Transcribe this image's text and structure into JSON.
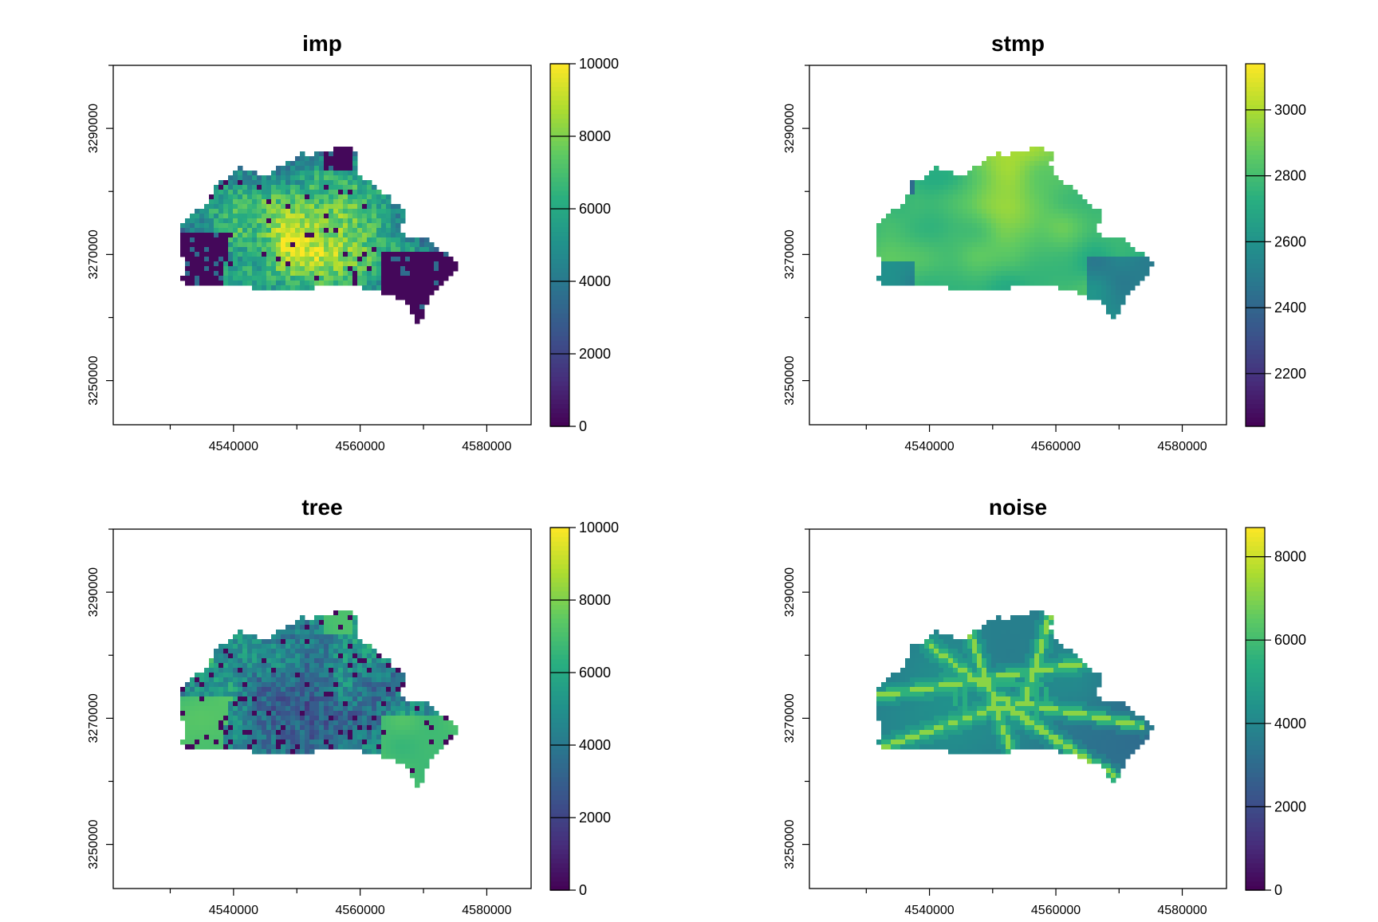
{
  "figure": {
    "title": "",
    "colormap": [
      "#440154",
      "#472d7b",
      "#3b528b",
      "#2c728e",
      "#21918c",
      "#28ae80",
      "#5ec962",
      "#addc30",
      "#fde725"
    ]
  },
  "chart_data": [
    {
      "type": "heatmap",
      "title": "imp",
      "xlabel": "",
      "ylabel": "",
      "xlim": [
        4521000,
        4587000
      ],
      "ylim": [
        3243000,
        3300000
      ],
      "xticks": [
        4540000,
        4560000,
        4580000
      ],
      "yticks": [
        3250000,
        3270000,
        3290000
      ],
      "xtick_labels": [
        "4540000",
        "4560000",
        "4580000"
      ],
      "ytick_labels": [
        "3250000",
        "3270000",
        "3290000"
      ],
      "colorbar": {
        "min": 0,
        "max": 10000,
        "ticks": [
          0,
          2000,
          4000,
          6000,
          8000,
          10000
        ],
        "tick_labels": [
          "0",
          "2000",
          "4000",
          "6000",
          "8000",
          "10000"
        ]
      },
      "pattern": "imp"
    },
    {
      "type": "heatmap",
      "title": "stmp",
      "xlabel": "",
      "ylabel": "",
      "xlim": [
        4521000,
        4587000
      ],
      "ylim": [
        3243000,
        3300000
      ],
      "xticks": [
        4540000,
        4560000,
        4580000
      ],
      "yticks": [
        3250000,
        3270000,
        3290000
      ],
      "xtick_labels": [
        "4540000",
        "4560000",
        "4580000"
      ],
      "ytick_labels": [
        "3250000",
        "3270000",
        "3290000"
      ],
      "colorbar": {
        "min": 2040,
        "max": 3140,
        "ticks": [
          2200,
          2400,
          2600,
          2800,
          3000
        ],
        "tick_labels": [
          "2200",
          "2400",
          "2600",
          "2800",
          "3000"
        ]
      },
      "pattern": "stmp"
    },
    {
      "type": "heatmap",
      "title": "tree",
      "xlabel": "",
      "ylabel": "",
      "xlim": [
        4521000,
        4587000
      ],
      "ylim": [
        3243000,
        3300000
      ],
      "xticks": [
        4540000,
        4560000,
        4580000
      ],
      "yticks": [
        3250000,
        3270000,
        3290000
      ],
      "xtick_labels": [
        "4540000",
        "4560000",
        "4580000"
      ],
      "ytick_labels": [
        "3250000",
        "3270000",
        "3290000"
      ],
      "colorbar": {
        "min": 0,
        "max": 10000,
        "ticks": [
          0,
          2000,
          4000,
          6000,
          8000,
          10000
        ],
        "tick_labels": [
          "0",
          "2000",
          "4000",
          "6000",
          "8000",
          "10000"
        ]
      },
      "pattern": "tree"
    },
    {
      "type": "heatmap",
      "title": "noise",
      "xlabel": "",
      "ylabel": "",
      "xlim": [
        4521000,
        4587000
      ],
      "ylim": [
        3243000,
        3300000
      ],
      "xticks": [
        4540000,
        4560000,
        4580000
      ],
      "yticks": [
        3250000,
        3270000,
        3290000
      ],
      "xtick_labels": [
        "4540000",
        "4560000",
        "4580000"
      ],
      "ytick_labels": [
        "3250000",
        "3270000",
        "3290000"
      ],
      "colorbar": {
        "min": 0,
        "max": 8700,
        "ticks": [
          0,
          2000,
          4000,
          6000,
          8000
        ],
        "tick_labels": [
          "0",
          "2000",
          "4000",
          "6000",
          "8000"
        ]
      },
      "pattern": "noise"
    }
  ]
}
